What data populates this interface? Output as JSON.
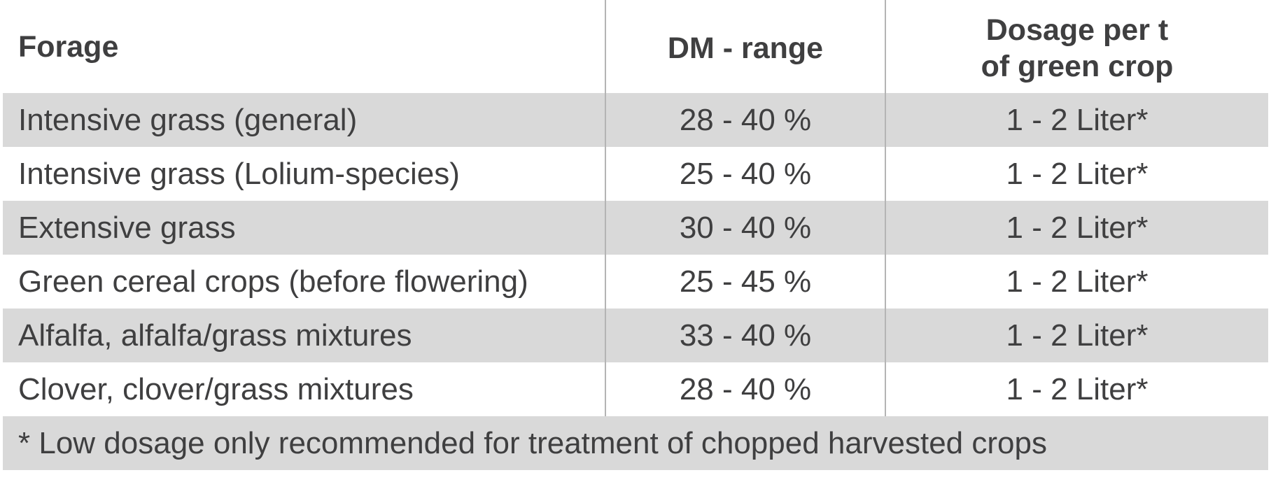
{
  "table": {
    "headers": {
      "forage": "Forage",
      "dm_range": "DM - range",
      "dosage_line1": "Dosage per t",
      "dosage_line2": "of green crop"
    },
    "rows": [
      {
        "forage": "Intensive grass (general)",
        "dm_range": "28 - 40 %",
        "dosage": "1 - 2 Liter*"
      },
      {
        "forage": "Intensive grass (Lolium-species)",
        "dm_range": "25 - 40 %",
        "dosage": "1 - 2 Liter*"
      },
      {
        "forage": "Extensive grass",
        "dm_range": "30 - 40 %",
        "dosage": "1 - 2 Liter*"
      },
      {
        "forage": "Green cereal crops (before flowering)",
        "dm_range": "25 - 45 %",
        "dosage": "1 - 2 Liter*"
      },
      {
        "forage": "Alfalfa, alfalfa/grass mixtures",
        "dm_range": "33 - 40 %",
        "dosage": "1 - 2 Liter*"
      },
      {
        "forage": "Clover, clover/grass mixtures",
        "dm_range": "28 - 40 %",
        "dosage": "1 - 2 Liter*"
      }
    ],
    "footnote": "* Low dosage only recommended for treatment of chopped harvested crops"
  },
  "colors": {
    "text": "#3f3f40",
    "row_shade": "#d9d9d9",
    "divider": "#b4b4b4"
  }
}
